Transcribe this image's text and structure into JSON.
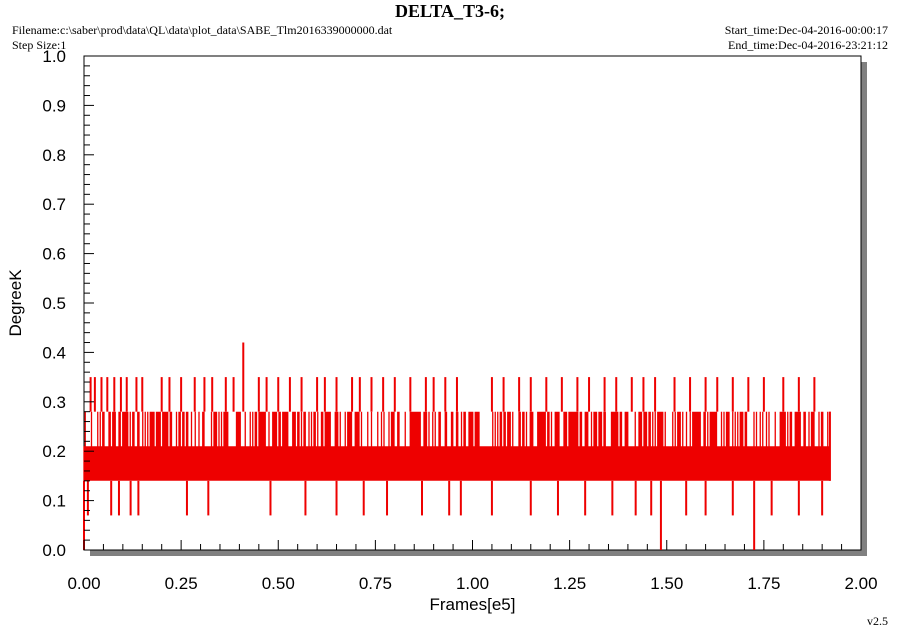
{
  "header": {
    "title": "DELTA_T3-6;",
    "filename": "Filename:c:\\saber\\prod\\data\\QL\\data\\plot_data\\SABE_Tlm2016339000000.dat",
    "step_size": "Step Size:1",
    "start_time": "Start_time:Dec-04-2016-00:00:17",
    "end_time": "End_time:Dec-04-2016-23:21:12"
  },
  "footer": {
    "version": "v2.5"
  },
  "colors": {
    "series": "#ee0000",
    "plot_background": "#ffffff",
    "shadow": "#808080",
    "axis": "#000000"
  },
  "chart_data": {
    "type": "line",
    "xlabel": "Frames[e5]",
    "ylabel": "DegreeK",
    "xlim": [
      0,
      2.0
    ],
    "ylim": [
      0,
      1.0
    ],
    "x_ticks": [
      "0.00",
      "0.25",
      "0.50",
      "0.75",
      "1.00",
      "1.25",
      "1.50",
      "1.75",
      "2.00"
    ],
    "y_ticks": [
      "0.0",
      "0.1",
      "0.2",
      "0.3",
      "0.4",
      "0.5",
      "0.6",
      "0.7",
      "0.8",
      "0.9",
      "1.0"
    ],
    "grid": false,
    "series": [
      {
        "levels": [
          0.07,
          0.14,
          0.21,
          0.28,
          0.35
        ],
        "x_range": [
          0.0,
          1.92
        ],
        "dense_band": [
          0.14,
          0.28
        ],
        "spikes_high": [
          {
            "x": 0.017,
            "y": 0.35
          },
          {
            "x": 0.028,
            "y": 0.35
          },
          {
            "x": 0.045,
            "y": 0.35
          },
          {
            "x": 0.06,
            "y": 0.35
          },
          {
            "x": 0.078,
            "y": 0.35
          },
          {
            "x": 0.095,
            "y": 0.35
          },
          {
            "x": 0.11,
            "y": 0.35
          },
          {
            "x": 0.135,
            "y": 0.35
          },
          {
            "x": 0.15,
            "y": 0.35
          },
          {
            "x": 0.2,
            "y": 0.35
          },
          {
            "x": 0.22,
            "y": 0.35
          },
          {
            "x": 0.25,
            "y": 0.35
          },
          {
            "x": 0.285,
            "y": 0.35
          },
          {
            "x": 0.31,
            "y": 0.35
          },
          {
            "x": 0.33,
            "y": 0.35
          },
          {
            "x": 0.365,
            "y": 0.35
          },
          {
            "x": 0.385,
            "y": 0.35
          },
          {
            "x": 0.41,
            "y": 0.42
          },
          {
            "x": 0.45,
            "y": 0.35
          },
          {
            "x": 0.47,
            "y": 0.35
          },
          {
            "x": 0.5,
            "y": 0.35
          },
          {
            "x": 0.53,
            "y": 0.35
          },
          {
            "x": 0.56,
            "y": 0.35
          },
          {
            "x": 0.6,
            "y": 0.35
          },
          {
            "x": 0.62,
            "y": 0.35
          },
          {
            "x": 0.65,
            "y": 0.35
          },
          {
            "x": 0.69,
            "y": 0.35
          },
          {
            "x": 0.71,
            "y": 0.35
          },
          {
            "x": 0.74,
            "y": 0.35
          },
          {
            "x": 0.77,
            "y": 0.35
          },
          {
            "x": 0.8,
            "y": 0.35
          },
          {
            "x": 0.84,
            "y": 0.35
          },
          {
            "x": 0.88,
            "y": 0.35
          },
          {
            "x": 0.9,
            "y": 0.35
          },
          {
            "x": 0.93,
            "y": 0.35
          },
          {
            "x": 0.96,
            "y": 0.35
          },
          {
            "x": 1.05,
            "y": 0.35
          },
          {
            "x": 1.08,
            "y": 0.35
          },
          {
            "x": 1.12,
            "y": 0.35
          },
          {
            "x": 1.15,
            "y": 0.35
          },
          {
            "x": 1.19,
            "y": 0.35
          },
          {
            "x": 1.23,
            "y": 0.35
          },
          {
            "x": 1.27,
            "y": 0.35
          },
          {
            "x": 1.3,
            "y": 0.35
          },
          {
            "x": 1.34,
            "y": 0.35
          },
          {
            "x": 1.37,
            "y": 0.35
          },
          {
            "x": 1.41,
            "y": 0.35
          },
          {
            "x": 1.44,
            "y": 0.35
          },
          {
            "x": 1.47,
            "y": 0.35
          },
          {
            "x": 1.52,
            "y": 0.35
          },
          {
            "x": 1.56,
            "y": 0.35
          },
          {
            "x": 1.6,
            "y": 0.35
          },
          {
            "x": 1.63,
            "y": 0.35
          },
          {
            "x": 1.67,
            "y": 0.35
          },
          {
            "x": 1.71,
            "y": 0.35
          },
          {
            "x": 1.75,
            "y": 0.35
          },
          {
            "x": 1.8,
            "y": 0.35
          },
          {
            "x": 1.84,
            "y": 0.35
          },
          {
            "x": 1.88,
            "y": 0.35
          }
        ],
        "spikes_low": [
          {
            "x": 0.01,
            "y": 0.07
          },
          {
            "x": 0.07,
            "y": 0.07
          },
          {
            "x": 0.09,
            "y": 0.07
          },
          {
            "x": 0.12,
            "y": 0.07
          },
          {
            "x": 0.14,
            "y": 0.07
          },
          {
            "x": 0.265,
            "y": 0.07
          },
          {
            "x": 0.32,
            "y": 0.07
          },
          {
            "x": 0.48,
            "y": 0.07
          },
          {
            "x": 0.57,
            "y": 0.07
          },
          {
            "x": 0.65,
            "y": 0.07
          },
          {
            "x": 0.72,
            "y": 0.07
          },
          {
            "x": 0.78,
            "y": 0.07
          },
          {
            "x": 0.87,
            "y": 0.07
          },
          {
            "x": 0.94,
            "y": 0.07
          },
          {
            "x": 0.97,
            "y": 0.07
          },
          {
            "x": 1.05,
            "y": 0.07
          },
          {
            "x": 1.15,
            "y": 0.07
          },
          {
            "x": 1.22,
            "y": 0.07
          },
          {
            "x": 1.29,
            "y": 0.07
          },
          {
            "x": 1.36,
            "y": 0.07
          },
          {
            "x": 1.42,
            "y": 0.07
          },
          {
            "x": 1.46,
            "y": 0.07
          },
          {
            "x": 1.485,
            "y": 0.0
          },
          {
            "x": 1.55,
            "y": 0.07
          },
          {
            "x": 1.6,
            "y": 0.07
          },
          {
            "x": 1.67,
            "y": 0.07
          },
          {
            "x": 1.725,
            "y": 0.0
          },
          {
            "x": 1.77,
            "y": 0.07
          },
          {
            "x": 1.84,
            "y": 0.07
          },
          {
            "x": 1.9,
            "y": 0.07
          }
        ]
      }
    ]
  }
}
